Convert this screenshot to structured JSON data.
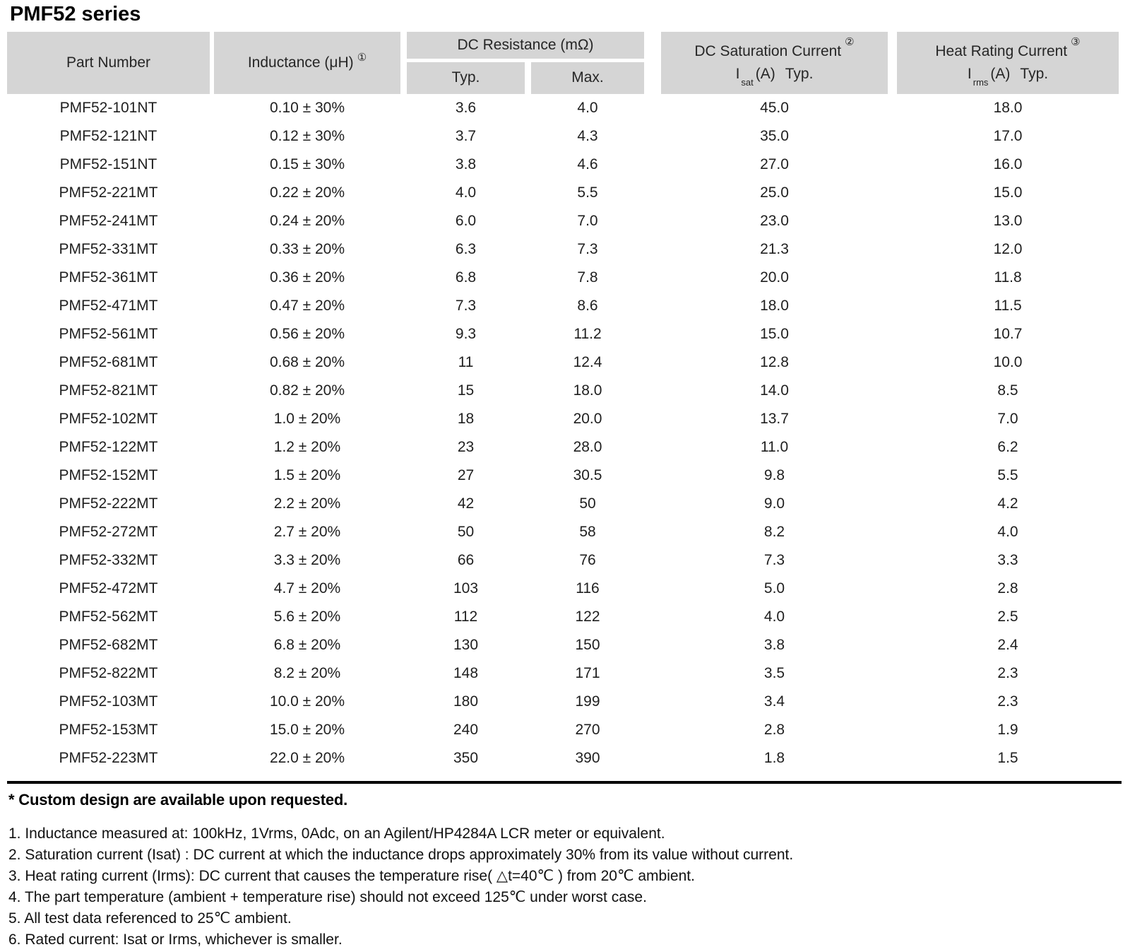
{
  "title": "PMF52 series",
  "colors": {
    "header_bg": "#d5d5d5",
    "rule": "#000000",
    "text": "#1f1f1f"
  },
  "table": {
    "headers": {
      "part_number": "Part Number",
      "inductance": "Inductance (μH)",
      "inductance_note": "①",
      "dc_resistance": "DC Resistance (mΩ)",
      "dcr_typ": "Typ.",
      "dcr_max": "Max.",
      "saturation": "DC Saturation Current",
      "saturation_note": "②",
      "sat_i": "I",
      "sat_sub": "sat",
      "sat_a": "(A)",
      "sat_typ": "Typ.",
      "heat": "Heat Rating Current",
      "heat_note": "③",
      "heat_i": "I",
      "heat_sub": "rms",
      "heat_a": "(A)",
      "heat_typ": "Typ."
    },
    "rows": [
      [
        "PMF52-101NT",
        "0.10 ± 30%",
        "3.6",
        "4.0",
        "45.0",
        "18.0"
      ],
      [
        "PMF52-121NT",
        "0.12 ± 30%",
        "3.7",
        "4.3",
        "35.0",
        "17.0"
      ],
      [
        "PMF52-151NT",
        "0.15 ± 30%",
        "3.8",
        "4.6",
        "27.0",
        "16.0"
      ],
      [
        "PMF52-221MT",
        "0.22 ± 20%",
        "4.0",
        "5.5",
        "25.0",
        "15.0"
      ],
      [
        "PMF52-241MT",
        "0.24 ± 20%",
        "6.0",
        "7.0",
        "23.0",
        "13.0"
      ],
      [
        "PMF52-331MT",
        "0.33 ± 20%",
        "6.3",
        "7.3",
        "21.3",
        "12.0"
      ],
      [
        "PMF52-361MT",
        "0.36 ± 20%",
        "6.8",
        "7.8",
        "20.0",
        "11.8"
      ],
      [
        "PMF52-471MT",
        "0.47 ± 20%",
        "7.3",
        "8.6",
        "18.0",
        "11.5"
      ],
      [
        "PMF52-561MT",
        "0.56 ± 20%",
        "9.3",
        "11.2",
        "15.0",
        "10.7"
      ],
      [
        "PMF52-681MT",
        "0.68 ± 20%",
        "11",
        "12.4",
        "12.8",
        "10.0"
      ],
      [
        "PMF52-821MT",
        "0.82 ± 20%",
        "15",
        "18.0",
        "14.0",
        "8.5"
      ],
      [
        "PMF52-102MT",
        "1.0 ± 20%",
        "18",
        "20.0",
        "13.7",
        "7.0"
      ],
      [
        "PMF52-122MT",
        "1.2 ± 20%",
        "23",
        "28.0",
        "11.0",
        "6.2"
      ],
      [
        "PMF52-152MT",
        "1.5 ± 20%",
        "27",
        "30.5",
        "9.8",
        "5.5"
      ],
      [
        "PMF52-222MT",
        "2.2 ± 20%",
        "42",
        "50",
        "9.0",
        "4.2"
      ],
      [
        "PMF52-272MT",
        "2.7 ± 20%",
        "50",
        "58",
        "8.2",
        "4.0"
      ],
      [
        "PMF52-332MT",
        "3.3 ± 20%",
        "66",
        "76",
        "7.3",
        "3.3"
      ],
      [
        "PMF52-472MT",
        "4.7 ± 20%",
        "103",
        "116",
        "5.0",
        "2.8"
      ],
      [
        "PMF52-562MT",
        "5.6 ± 20%",
        "112",
        "122",
        "4.0",
        "2.5"
      ],
      [
        "PMF52-682MT",
        "6.8 ± 20%",
        "130",
        "150",
        "3.8",
        "2.4"
      ],
      [
        "PMF52-822MT",
        "8.2 ± 20%",
        "148",
        "171",
        "3.5",
        "2.3"
      ],
      [
        "PMF52-103MT",
        "10.0 ± 20%",
        "180",
        "199",
        "3.4",
        "2.3"
      ],
      [
        "PMF52-153MT",
        "15.0 ± 20%",
        "240",
        "270",
        "2.8",
        "1.9"
      ],
      [
        "PMF52-223MT",
        "22.0 ± 20%",
        "350",
        "390",
        "1.8",
        "1.5"
      ]
    ]
  },
  "footnotes": {
    "custom": "* Custom design are available upon requested.",
    "notes": [
      "1. Inductance measured at: 100kHz, 1Vrms, 0Adc, on an Agilent/HP4284A LCR meter or equivalent.",
      "2. Saturation current (Isat) : DC current at which the inductance drops approximately 30% from its value without current.",
      "3. Heat rating current (Irms): DC current that causes the temperature rise( △t=40℃ ) from 20℃ ambient.",
      "4. The part temperature (ambient + temperature rise) should not exceed 125℃ under worst case.",
      "5. All test data referenced to 25℃ ambient.",
      "6. Rated current: Isat or Irms, whichever is smaller."
    ]
  }
}
